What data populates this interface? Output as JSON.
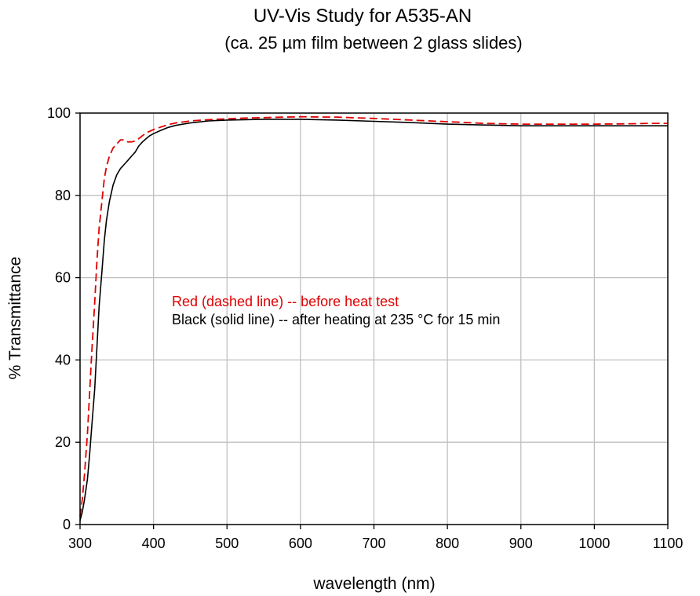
{
  "chart_data": {
    "type": "line",
    "title": "UV-Vis Study for A535-AN",
    "subtitle": "(ca. 25 µm film between 2 glass slides)",
    "xlabel": "wavelength (nm)",
    "ylabel": "% Transmittance",
    "xlim": [
      300,
      1100
    ],
    "ylim": [
      0,
      100
    ],
    "xticks": [
      "300",
      "400",
      "500",
      "600",
      "700",
      "800",
      "900",
      "1000",
      "1100"
    ],
    "yticks": [
      "0",
      "20",
      "40",
      "60",
      "80",
      "100"
    ],
    "grid": true,
    "annotations": [
      {
        "text": "Red (dashed line) -- before heat test",
        "color": "#e00000"
      },
      {
        "text": "Black (solid line) -- after heating at 235 °C for 15 min",
        "color": "#000000"
      }
    ],
    "series": [
      {
        "color": "#e00000",
        "style": "dashed",
        "x": [
          300,
          303,
          306,
          310,
          313,
          316,
          320,
          323,
          326,
          330,
          333,
          336,
          340,
          345,
          350,
          355,
          360,
          365,
          370,
          375,
          380,
          385,
          390,
          400,
          410,
          420,
          430,
          450,
          475,
          500,
          525,
          550,
          575,
          600,
          650,
          700,
          750,
          800,
          850,
          900,
          950,
          1000,
          1050,
          1075,
          1100
        ],
        "y": [
          2,
          6,
          12,
          22,
          32,
          42,
          54,
          64,
          72,
          79,
          84,
          87,
          89.5,
          91.5,
          92.5,
          93.5,
          93.5,
          93,
          93,
          93.2,
          93.8,
          94.5,
          95.2,
          96,
          96.6,
          97.2,
          97.6,
          98.1,
          98.4,
          98.6,
          98.8,
          98.9,
          99,
          99.1,
          99,
          98.7,
          98.3,
          97.9,
          97.5,
          97.3,
          97.3,
          97.3,
          97.4,
          97.5,
          97.5
        ]
      },
      {
        "color": "#000000",
        "style": "solid",
        "x": [
          300,
          303,
          306,
          310,
          313,
          316,
          320,
          323,
          326,
          330,
          333,
          336,
          340,
          345,
          350,
          355,
          360,
          365,
          370,
          375,
          380,
          385,
          390,
          395,
          400,
          410,
          420,
          430,
          450,
          475,
          500,
          525,
          550,
          575,
          600,
          650,
          700,
          750,
          800,
          850,
          900,
          950,
          1000,
          1050,
          1075,
          1100
        ],
        "y": [
          1,
          3,
          6,
          11,
          17,
          24,
          33,
          43,
          53,
          62,
          69,
          74,
          78.5,
          82.5,
          85,
          86.5,
          87.5,
          88.5,
          89.5,
          90.5,
          92,
          93,
          93.8,
          94.5,
          95,
          95.8,
          96.5,
          97,
          97.6,
          98.1,
          98.3,
          98.4,
          98.5,
          98.5,
          98.5,
          98.3,
          98,
          97.7,
          97.3,
          97.1,
          96.9,
          96.9,
          96.9,
          96.9,
          96.9,
          96.9
        ]
      }
    ]
  }
}
